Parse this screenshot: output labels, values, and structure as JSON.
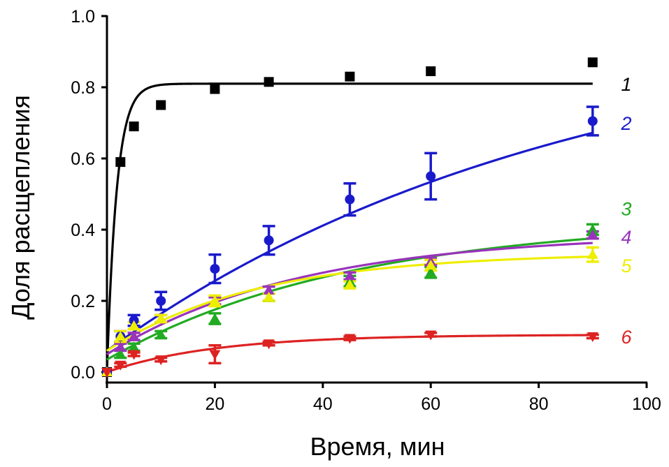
{
  "chart_data": {
    "type": "scatter",
    "title": "",
    "xlabel": "Время, мин",
    "ylabel": "Доля расщепления",
    "xlim": [
      0,
      100
    ],
    "ylim": [
      0,
      1.0
    ],
    "xticks": [
      "0",
      "20",
      "40",
      "60",
      "80",
      "100"
    ],
    "yticks": [
      "0.0",
      "0.2",
      "0.4",
      "0.6",
      "0.8",
      "1.0"
    ],
    "grid": false,
    "legend": "inline labels at right end of each curve",
    "series": [
      {
        "name": "1",
        "color": "#000000",
        "marker": "square",
        "x": [
          0,
          2.5,
          5,
          10,
          20,
          30,
          45,
          60,
          90
        ],
        "y": [
          0,
          0.59,
          0.69,
          0.75,
          0.795,
          0.815,
          0.83,
          0.845,
          0.87
        ],
        "err": [
          0,
          0,
          0,
          0,
          0,
          0,
          0,
          0,
          0
        ],
        "fit": {
          "plateau": 0.81,
          "k": 0.55,
          "y0": 0
        }
      },
      {
        "name": "2",
        "color": "#1a1acc",
        "marker": "circle",
        "x": [
          0,
          2.5,
          5,
          10,
          20,
          30,
          45,
          60,
          90
        ],
        "y": [
          0,
          0.1,
          0.145,
          0.2,
          0.29,
          0.37,
          0.485,
          0.55,
          0.705
        ],
        "err": [
          0,
          0.015,
          0.015,
          0.025,
          0.04,
          0.04,
          0.045,
          0.065,
          0.04
        ],
        "fit": {
          "plateau": 1.0,
          "k": 0.0117,
          "y0": 0.06
        }
      },
      {
        "name": "3",
        "color": "#22aa22",
        "marker": "triangle-up",
        "x": [
          0,
          2.5,
          5,
          10,
          20,
          30,
          45,
          60,
          90
        ],
        "y": [
          0,
          0.05,
          0.07,
          0.105,
          0.15,
          0.21,
          0.255,
          0.28,
          0.4
        ],
        "err": [
          0,
          0.01,
          0.01,
          0.01,
          0.015,
          0.01,
          0.015,
          0.015,
          0.015
        ],
        "fit": {
          "plateau": 0.43,
          "k": 0.022,
          "y0": 0.035
        }
      },
      {
        "name": "4",
        "color": "#9933bb",
        "marker": "triangle-up",
        "x": [
          0,
          2.5,
          5,
          10,
          20,
          30,
          45,
          60,
          90
        ],
        "y": [
          0,
          0.07,
          0.1,
          0.15,
          0.2,
          0.23,
          0.27,
          0.31,
          0.385
        ],
        "err": [
          0,
          0.01,
          0.01,
          0.01,
          0.01,
          0.01,
          0.01,
          0.01,
          0.01
        ],
        "fit": {
          "plateau": 0.39,
          "k": 0.028,
          "y0": 0.05
        }
      },
      {
        "name": "5",
        "color": "#eeee00",
        "marker": "triangle-up",
        "x": [
          0,
          2.5,
          5,
          10,
          20,
          30,
          45,
          60,
          90
        ],
        "y": [
          0,
          0.1,
          0.13,
          0.15,
          0.2,
          0.21,
          0.245,
          0.3,
          0.33
        ],
        "err": [
          0,
          0.015,
          0.01,
          0.01,
          0.015,
          0.01,
          0.01,
          0.015,
          0.02
        ],
        "fit": {
          "plateau": 0.335,
          "k": 0.036,
          "y0": 0.06
        }
      },
      {
        "name": "6",
        "color": "#dd2222",
        "marker": "triangle-down",
        "x": [
          0,
          2.5,
          5,
          10,
          20,
          30,
          45,
          60,
          90
        ],
        "y": [
          0,
          0.02,
          0.05,
          0.035,
          0.05,
          0.08,
          0.095,
          0.105,
          0.1
        ],
        "err": [
          0,
          0.005,
          0.005,
          0.005,
          0.025,
          0.005,
          0.005,
          0.005,
          0.005
        ],
        "fit": {
          "plateau": 0.105,
          "k": 0.05,
          "y0": 0.0
        }
      }
    ]
  }
}
